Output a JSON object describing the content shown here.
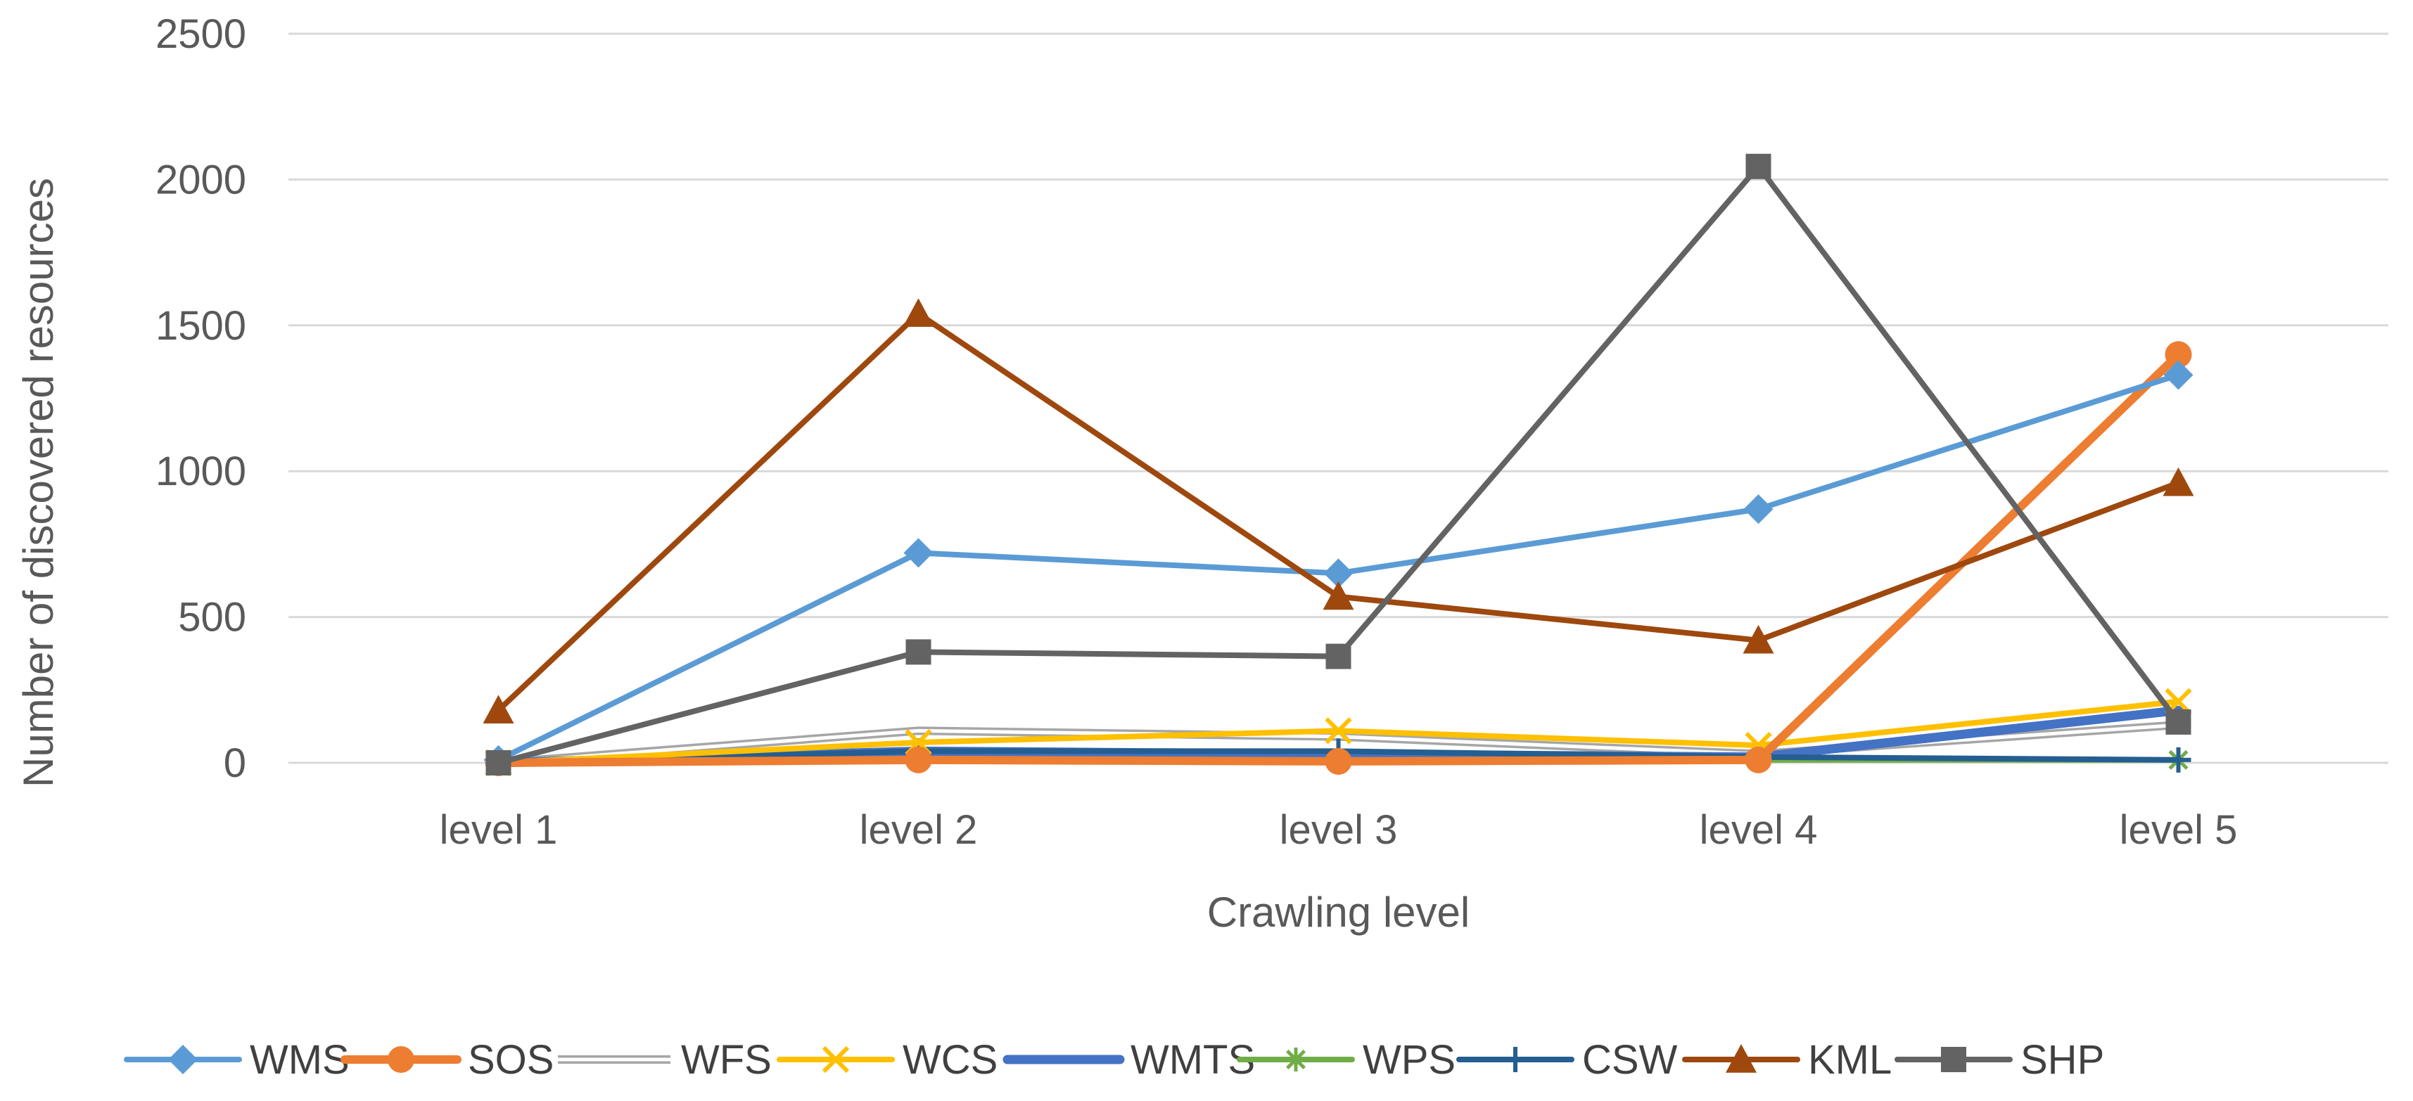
{
  "chart_data": {
    "type": "line",
    "title": "",
    "xlabel": "Crawling level",
    "ylabel": "Number of discovered resources",
    "categories": [
      "level 1",
      "level 2",
      "level 3",
      "level 4",
      "level 5"
    ],
    "ylim": [
      0,
      2500
    ],
    "yticks": [
      0,
      500,
      1000,
      1500,
      2000,
      2500
    ],
    "grid": true,
    "legend_position": "bottom",
    "series": [
      {
        "name": "WFS",
        "values": [
          0,
          110,
          90,
          30,
          130
        ],
        "color": "#c0c0c0",
        "marker": "none",
        "style": "double"
      },
      {
        "name": "WPS",
        "values": [
          0,
          10,
          10,
          10,
          10
        ],
        "color": "#70ad47",
        "marker": "asterisk"
      },
      {
        "name": "WMTS",
        "values": [
          0,
          40,
          30,
          20,
          180
        ],
        "color": "#4472c4",
        "marker": "none",
        "width": 13
      },
      {
        "name": "CSW",
        "values": [
          0,
          40,
          40,
          20,
          10
        ],
        "color": "#255e91",
        "marker": "plus"
      },
      {
        "name": "WCS",
        "values": [
          0,
          70,
          110,
          60,
          210
        ],
        "color": "#ffc000",
        "marker": "x"
      },
      {
        "name": "SOS",
        "values": [
          0,
          10,
          5,
          10,
          1400
        ],
        "color": "#ed7d31",
        "marker": "circle",
        "width": 12
      },
      {
        "name": "WMS",
        "values": [
          10,
          720,
          650,
          870,
          1330
        ],
        "color": "#5b9bd5",
        "marker": "diamond"
      },
      {
        "name": "KML",
        "values": [
          180,
          1540,
          570,
          420,
          960
        ],
        "color": "#9e480e",
        "marker": "triangle"
      },
      {
        "name": "SHP",
        "values": [
          0,
          380,
          365,
          2045,
          140
        ],
        "color": "#636363",
        "marker": "square"
      }
    ],
    "legend_order": [
      "WMS",
      "SOS",
      "WFS",
      "WCS",
      "WMTS",
      "WPS",
      "CSW",
      "KML",
      "SHP"
    ]
  }
}
